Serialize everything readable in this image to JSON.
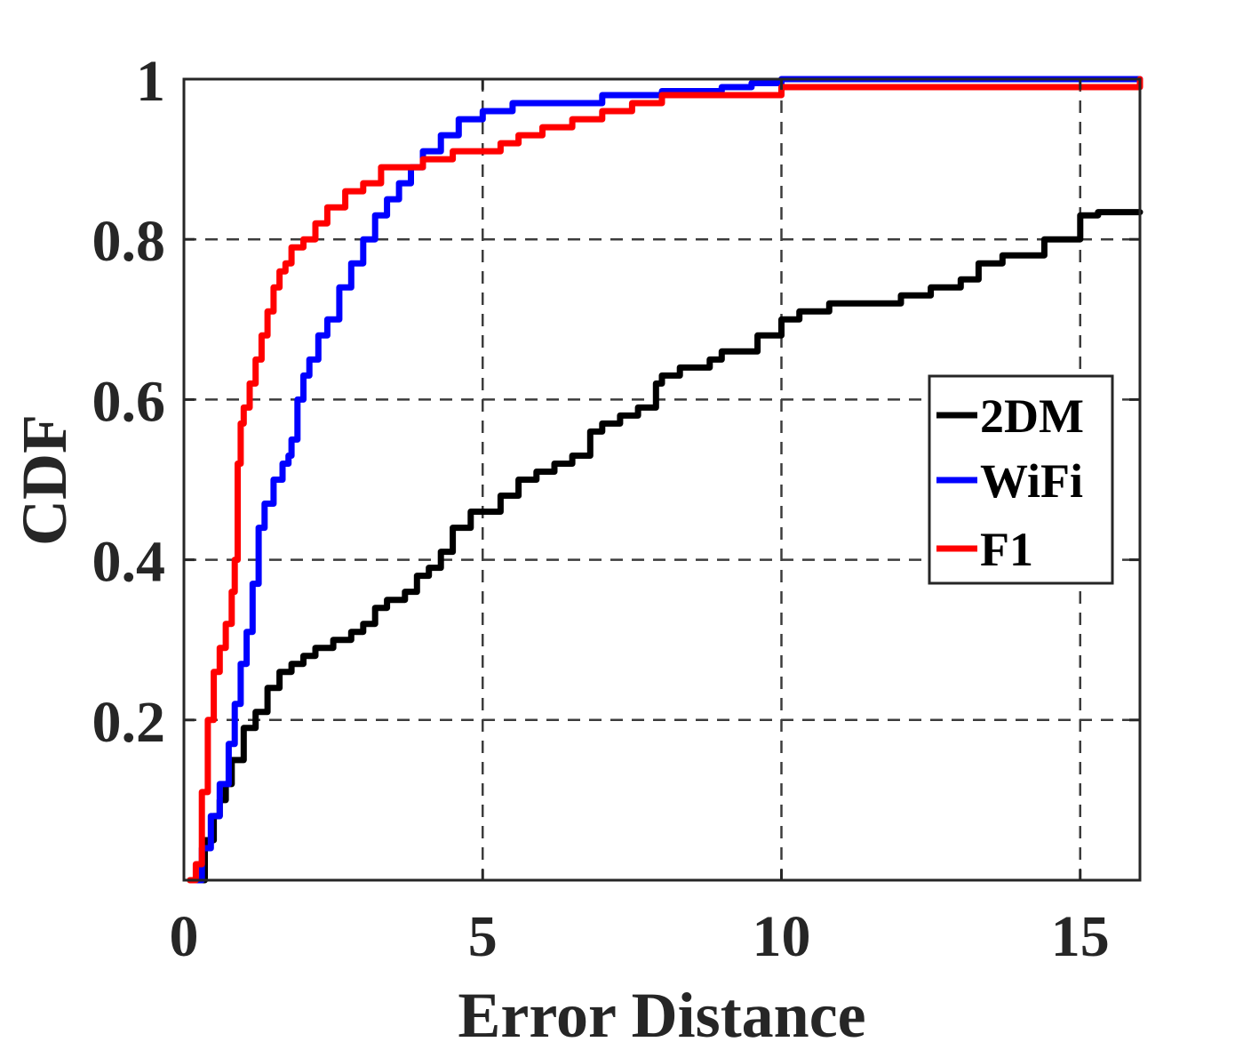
{
  "chart_data": {
    "type": "line",
    "title": "",
    "xlabel": "Error Distance",
    "ylabel": "CDF",
    "xlim": [
      0,
      16
    ],
    "ylim": [
      0,
      1
    ],
    "x_ticks": [
      0,
      5,
      10,
      15
    ],
    "x_tick_labels": [
      "0",
      "5",
      "10",
      "15"
    ],
    "y_ticks": [
      0.2,
      0.4,
      0.6,
      0.8,
      1
    ],
    "y_tick_labels": [
      "0.2",
      "0.4",
      "0.6",
      "0.8",
      "1"
    ],
    "grid": true,
    "legend": {
      "position": "right",
      "entries": [
        "2DM",
        "WiFi",
        "F1"
      ]
    },
    "series": [
      {
        "name": "2DM",
        "color": "#000000",
        "x": [
          0.2,
          0.35,
          0.5,
          0.6,
          0.7,
          0.8,
          1.0,
          1.2,
          1.4,
          1.6,
          1.8,
          2.0,
          2.2,
          2.5,
          2.8,
          3.0,
          3.2,
          3.4,
          3.7,
          3.9,
          4.1,
          4.3,
          4.5,
          4.8,
          5.0,
          5.3,
          5.6,
          5.9,
          6.2,
          6.5,
          6.8,
          7.0,
          7.3,
          7.6,
          7.9,
          8.0,
          8.3,
          8.8,
          9.0,
          9.6,
          10.0,
          10.3,
          10.8,
          11.5,
          12.0,
          12.5,
          13.0,
          13.3,
          13.7,
          14.0,
          14.4,
          14.8,
          15.0,
          15.3,
          16.0
        ],
        "y": [
          0.0,
          0.05,
          0.08,
          0.1,
          0.12,
          0.15,
          0.19,
          0.21,
          0.24,
          0.26,
          0.27,
          0.28,
          0.29,
          0.3,
          0.31,
          0.32,
          0.34,
          0.35,
          0.36,
          0.38,
          0.39,
          0.41,
          0.44,
          0.46,
          0.46,
          0.48,
          0.5,
          0.51,
          0.52,
          0.53,
          0.56,
          0.57,
          0.58,
          0.59,
          0.62,
          0.63,
          0.64,
          0.65,
          0.66,
          0.68,
          0.7,
          0.71,
          0.72,
          0.72,
          0.73,
          0.74,
          0.75,
          0.77,
          0.78,
          0.78,
          0.8,
          0.8,
          0.83,
          0.834,
          0.834
        ]
      },
      {
        "name": "WiFi",
        "color": "#0000ff",
        "x": [
          0.2,
          0.3,
          0.45,
          0.6,
          0.75,
          0.85,
          0.95,
          1.05,
          1.15,
          1.25,
          1.35,
          1.5,
          1.65,
          1.75,
          1.8,
          1.9,
          2.0,
          2.1,
          2.25,
          2.4,
          2.6,
          2.8,
          3.0,
          3.2,
          3.4,
          3.6,
          3.8,
          4.0,
          4.3,
          4.6,
          5.0,
          5.3,
          5.5,
          6.0,
          6.5,
          7.0,
          7.5,
          8.0,
          9.0,
          9.5,
          10.0,
          12.0,
          16.0
        ],
        "y": [
          0.0,
          0.04,
          0.08,
          0.12,
          0.17,
          0.22,
          0.27,
          0.31,
          0.37,
          0.44,
          0.47,
          0.5,
          0.52,
          0.53,
          0.55,
          0.6,
          0.63,
          0.65,
          0.68,
          0.7,
          0.74,
          0.77,
          0.8,
          0.83,
          0.85,
          0.87,
          0.89,
          0.91,
          0.93,
          0.95,
          0.96,
          0.96,
          0.97,
          0.97,
          0.97,
          0.98,
          0.98,
          0.985,
          0.99,
          0.995,
          1.0,
          1.0,
          1.0
        ]
      },
      {
        "name": "F1",
        "color": "#ff0000",
        "x": [
          0.1,
          0.2,
          0.3,
          0.4,
          0.5,
          0.6,
          0.7,
          0.8,
          0.85,
          0.9,
          0.95,
          1.0,
          1.1,
          1.2,
          1.3,
          1.4,
          1.5,
          1.6,
          1.7,
          1.8,
          2.0,
          2.2,
          2.4,
          2.7,
          3.0,
          3.3,
          3.6,
          4.0,
          4.5,
          5.0,
          5.3,
          5.6,
          6.0,
          6.5,
          7.0,
          7.5,
          8.0,
          9.0,
          10.0,
          16.0
        ],
        "y": [
          0.0,
          0.02,
          0.11,
          0.2,
          0.26,
          0.29,
          0.32,
          0.36,
          0.4,
          0.52,
          0.57,
          0.59,
          0.62,
          0.65,
          0.68,
          0.71,
          0.74,
          0.76,
          0.77,
          0.79,
          0.8,
          0.82,
          0.84,
          0.86,
          0.87,
          0.89,
          0.89,
          0.9,
          0.91,
          0.91,
          0.92,
          0.93,
          0.94,
          0.95,
          0.96,
          0.97,
          0.98,
          0.98,
          0.99,
          1.0
        ]
      }
    ]
  }
}
